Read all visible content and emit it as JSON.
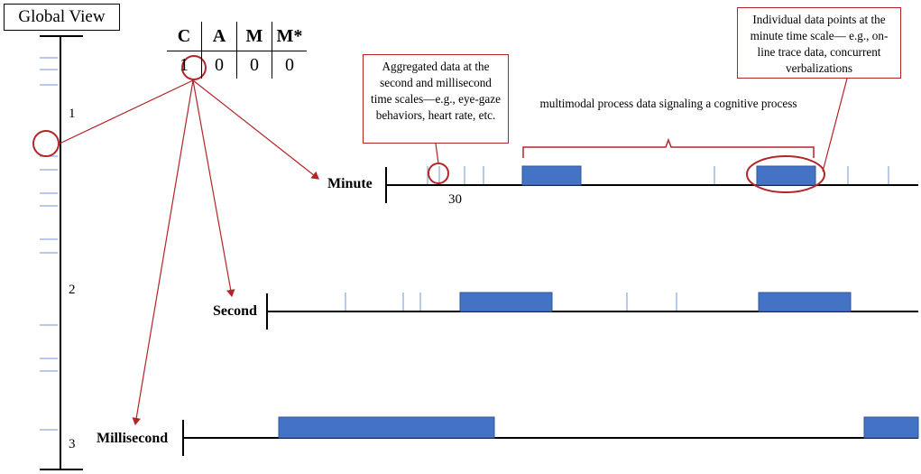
{
  "title": "Global View",
  "table": {
    "headers": [
      "C",
      "A",
      "M",
      "M*"
    ],
    "values": [
      "1",
      "0",
      "0",
      "0"
    ]
  },
  "scale_labels": [
    "1",
    "2",
    "3"
  ],
  "timelines": {
    "minute": {
      "label": "Minute",
      "tick_label": "30"
    },
    "second": {
      "label": "Second"
    },
    "millisecond": {
      "label": "Millisecond"
    }
  },
  "callouts": {
    "aggregated": "Aggregated data at the second and millisecond time scales—e.g., eye-gaze behaviors, heart rate, etc.",
    "individual": "Individual data points at the minute time scale— e.g., on-line trace data, concurrent verbalizations"
  },
  "brace_note": "multimodal process data signaling a cognitive process",
  "colors": {
    "accent": "#b32428",
    "bar": "#4472c4",
    "bar_border": "#2f5597",
    "tick": "#9fb8e0",
    "axis": "#000000"
  }
}
